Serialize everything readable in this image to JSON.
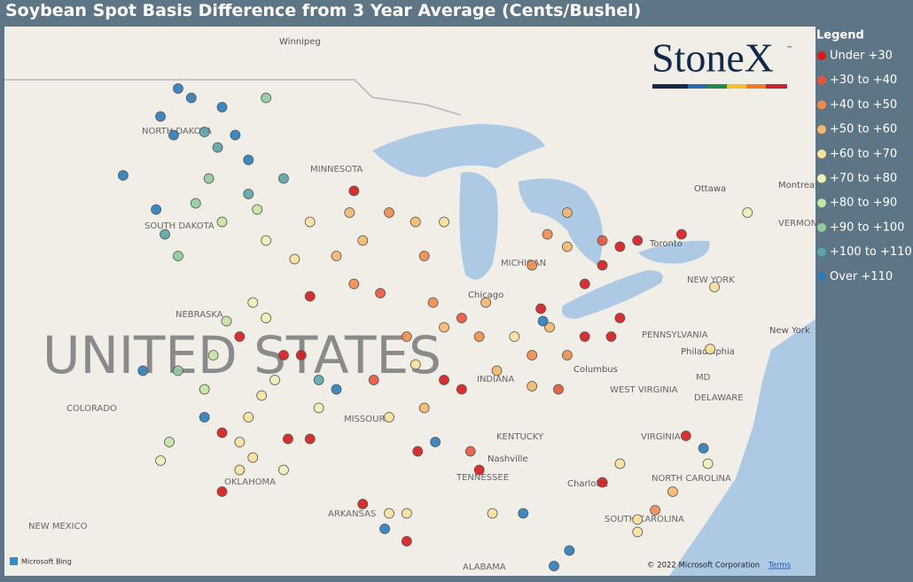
{
  "title": "Soybean Spot Basis Difference from 3 Year Average (Cents/Bushel)",
  "legend": {
    "title": "Legend",
    "items": [
      {
        "name": "Under +30",
        "color": "#d7191c"
      },
      {
        "name": "+30 to +40",
        "color": "#e8553b"
      },
      {
        "name": "+40 to +50",
        "color": "#f08b4c"
      },
      {
        "name": "+50 to +60",
        "color": "#f6b66e"
      },
      {
        "name": "+60 to +70",
        "color": "#f9e09c"
      },
      {
        "name": "+70 to +80",
        "color": "#eef1b6"
      },
      {
        "name": "+80 to +90",
        "color": "#c5e3a2"
      },
      {
        "name": "+90 to +100",
        "color": "#8fcb9b"
      },
      {
        "name": "+100 to +110",
        "color": "#5aa5a9"
      },
      {
        "name": "Over +110",
        "color": "#2b7bba"
      }
    ]
  },
  "logo": {
    "text": "StoneX",
    "mark": "™"
  },
  "map": {
    "places": [
      "Winnipeg",
      "NORTH DAKOTA",
      "MINNESOTA",
      "SOUTH DAKOTA",
      "NEBRASKA",
      "UNITED STATES",
      "COLORADO",
      "MISSOURI",
      "KENTUCKY",
      "Nashville",
      "TENNESSEE",
      "OKLAHOMA",
      "ARKANSAS",
      "NEW MEXICO",
      "ALABAMA",
      "Charlotte",
      "NORTH CAROLINA",
      "SOUTH CAROLINA",
      "VIRGINIA",
      "WEST VIRGINIA",
      "DELAWARE",
      "MD",
      "Philadelphia",
      "New York",
      "NEW YORK",
      "PENNSYLVANIA",
      "Columbus",
      "INDIANA",
      "Toronto",
      "Ottawa",
      "Montreal",
      "VERMONT",
      "MICHIGAN",
      "Chicago"
    ],
    "points": [
      [
        -100.8,
        48.5,
        9
      ],
      [
        -98.8,
        47.9,
        9
      ],
      [
        -101.6,
        47.6,
        9
      ],
      [
        -97.6,
        46.2,
        9
      ],
      [
        -99.6,
        47.1,
        8
      ],
      [
        -96.8,
        48.2,
        7
      ],
      [
        -103.3,
        45.7,
        9
      ],
      [
        -101.8,
        44.6,
        9
      ],
      [
        -100.2,
        48.2,
        9
      ],
      [
        -99.0,
        46.6,
        8
      ],
      [
        -98.2,
        47.0,
        9
      ],
      [
        -101.0,
        47.0,
        9
      ],
      [
        -100.0,
        44.8,
        7
      ],
      [
        -98.8,
        44.2,
        6
      ],
      [
        -100.8,
        43.1,
        7
      ],
      [
        -97.6,
        45.1,
        8
      ],
      [
        -96.0,
        45.6,
        8
      ],
      [
        -96.8,
        43.6,
        5
      ],
      [
        -99.4,
        45.6,
        7
      ],
      [
        -97.2,
        44.6,
        6
      ],
      [
        -101.4,
        43.8,
        8
      ],
      [
        -94.8,
        44.2,
        4
      ],
      [
        -93.6,
        43.1,
        3
      ],
      [
        -92.8,
        42.2,
        2
      ],
      [
        -94.8,
        41.8,
        0
      ],
      [
        -91.6,
        41.9,
        1
      ],
      [
        -92.4,
        43.6,
        3
      ],
      [
        -91.2,
        44.5,
        2
      ],
      [
        -90.0,
        44.2,
        3
      ],
      [
        -88.7,
        44.2,
        4
      ],
      [
        -89.6,
        43.1,
        2
      ],
      [
        -92.8,
        45.2,
        0
      ],
      [
        -95.5,
        43.0,
        4
      ],
      [
        -93.0,
        44.5,
        3
      ],
      [
        -90.4,
        40.5,
        2
      ],
      [
        -88.7,
        40.8,
        3
      ],
      [
        -87.9,
        41.1,
        1
      ],
      [
        -87.1,
        40.5,
        2
      ],
      [
        -88.7,
        39.1,
        0
      ],
      [
        -87.9,
        38.8,
        0
      ],
      [
        -89.6,
        38.2,
        3
      ],
      [
        -90.0,
        39.6,
        4
      ],
      [
        -86.3,
        39.4,
        3
      ],
      [
        -84.7,
        39.9,
        2
      ],
      [
        -83.9,
        40.8,
        3
      ],
      [
        -84.3,
        41.4,
        0
      ],
      [
        -85.5,
        40.5,
        4
      ],
      [
        -83.1,
        39.9,
        2
      ],
      [
        -89.2,
        41.6,
        2
      ],
      [
        -86.8,
        41.6,
        3
      ],
      [
        -84.7,
        42.8,
        2
      ],
      [
        -83.1,
        43.4,
        3
      ],
      [
        -82.3,
        42.2,
        0
      ],
      [
        -81.5,
        42.8,
        0
      ],
      [
        -80.7,
        43.4,
        0
      ],
      [
        -81.5,
        43.6,
        1
      ],
      [
        -79.9,
        43.6,
        0
      ],
      [
        -77.9,
        43.8,
        0
      ],
      [
        -83.1,
        44.5,
        3
      ],
      [
        -84.0,
        43.8,
        2
      ],
      [
        -82.3,
        40.5,
        0
      ],
      [
        -81.1,
        40.5,
        0
      ],
      [
        -80.7,
        41.1,
        0
      ],
      [
        -83.5,
        38.8,
        1
      ],
      [
        -84.7,
        38.9,
        3
      ],
      [
        -84.2,
        41.0,
        9
      ],
      [
        -98.0,
        40.5,
        0
      ],
      [
        -96.8,
        41.1,
        5
      ],
      [
        -99.2,
        39.9,
        6
      ],
      [
        -100.8,
        39.4,
        7
      ],
      [
        -99.6,
        38.8,
        6
      ],
      [
        -96.0,
        39.9,
        0
      ],
      [
        -96.4,
        39.1,
        5
      ],
      [
        -94.4,
        39.1,
        8
      ],
      [
        -95.2,
        39.9,
        0
      ],
      [
        -97.6,
        37.9,
        4
      ],
      [
        -98.0,
        37.1,
        4
      ],
      [
        -98.8,
        37.4,
        0
      ],
      [
        -99.6,
        37.9,
        9
      ],
      [
        -102.4,
        39.4,
        9
      ],
      [
        -101.2,
        37.1,
        6
      ],
      [
        -101.6,
        36.5,
        5
      ],
      [
        -97.4,
        41.6,
        5
      ],
      [
        -98.6,
        41.0,
        6
      ],
      [
        -97.0,
        38.6,
        4
      ],
      [
        -98.0,
        36.2,
        4
      ],
      [
        -98.8,
        35.5,
        0
      ],
      [
        -96.0,
        36.2,
        5
      ],
      [
        -94.8,
        37.2,
        0
      ],
      [
        -95.8,
        37.2,
        0
      ],
      [
        -97.4,
        36.6,
        4
      ],
      [
        -93.6,
        38.8,
        9
      ],
      [
        -94.4,
        38.2,
        5
      ],
      [
        -91.9,
        39.1,
        1
      ],
      [
        -91.2,
        37.9,
        4
      ],
      [
        -89.9,
        36.8,
        0
      ],
      [
        -89.1,
        37.1,
        9
      ],
      [
        -87.5,
        36.8,
        1
      ],
      [
        -87.1,
        36.2,
        0
      ],
      [
        -90.4,
        34.8,
        4
      ],
      [
        -91.2,
        34.8,
        4
      ],
      [
        -92.4,
        35.1,
        0
      ],
      [
        -91.4,
        34.3,
        9
      ],
      [
        -90.4,
        33.9,
        0
      ],
      [
        -85.1,
        34.8,
        9
      ],
      [
        -86.5,
        34.8,
        4
      ],
      [
        -83.0,
        33.6,
        9
      ],
      [
        -83.7,
        33.1,
        9
      ],
      [
        -81.5,
        35.8,
        0
      ],
      [
        -79.9,
        34.6,
        4
      ],
      [
        -79.1,
        34.9,
        2
      ],
      [
        -78.3,
        35.5,
        3
      ],
      [
        -76.7,
        36.4,
        5
      ],
      [
        -76.9,
        36.9,
        9
      ],
      [
        -77.7,
        37.3,
        0
      ],
      [
        -80.7,
        36.4,
        4
      ],
      [
        -76.6,
        40.1,
        4
      ],
      [
        -74.9,
        44.5,
        5
      ],
      [
        -76.4,
        42.1,
        4
      ],
      [
        -79.9,
        34.2,
        4
      ]
    ]
  },
  "attribution": {
    "provider": "Microsoft Bing",
    "copyright": "© 2022 Microsoft Corporation",
    "terms": "Terms"
  }
}
